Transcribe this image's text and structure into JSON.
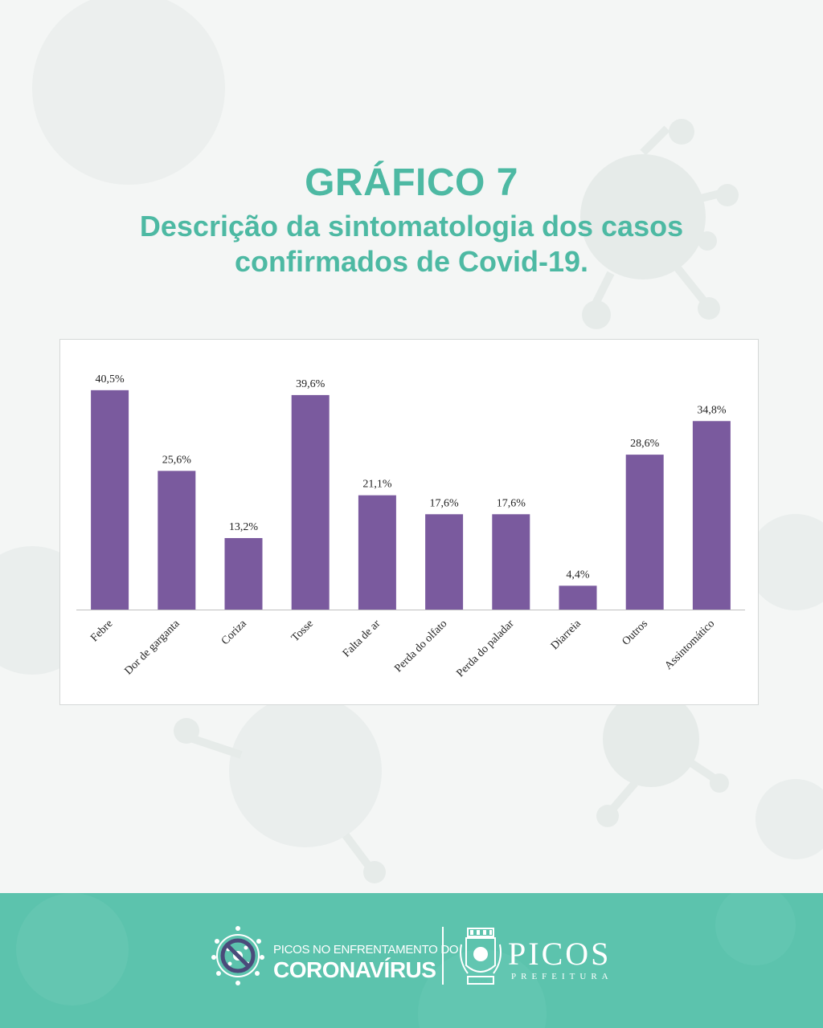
{
  "header": {
    "title": "GRÁFICO 7",
    "subtitle_line1": "Descrição da sintomatologia dos casos",
    "subtitle_line2": "confirmados de Covid-19."
  },
  "chart_data": {
    "type": "bar",
    "categories": [
      "Febre",
      "Dor de garganta",
      "Coriza",
      "Tosse",
      "Falta de ar",
      "Perda do olfato",
      "Perda do paladar",
      "Diarreia",
      "Outros",
      "Assintomático"
    ],
    "values": [
      40.5,
      25.6,
      13.2,
      39.6,
      21.1,
      17.6,
      17.6,
      4.4,
      28.6,
      34.8
    ],
    "value_labels": [
      "40,5%",
      "25,6%",
      "13,2%",
      "39,6%",
      "21,1%",
      "17,6%",
      "17,6%",
      "4,4%",
      "28,6%",
      "34,8%"
    ],
    "ylim": [
      0,
      47
    ],
    "unit": "%",
    "bar_color": "#7a5a9e",
    "grid": false,
    "legend": "none"
  },
  "footer": {
    "campaign_line1": "PICOS NO ENFRENTAMENTO DO",
    "campaign_line2": "CORONAVÍRUS",
    "city_name": "PICOS",
    "city_sub": "PREFEITURA",
    "background_color": "#5cc3ad",
    "crest_banner_text": "PICOS"
  },
  "colors": {
    "accent": "#4db9a3",
    "bars": "#7a5a9e",
    "footer": "#5cc3ad"
  }
}
